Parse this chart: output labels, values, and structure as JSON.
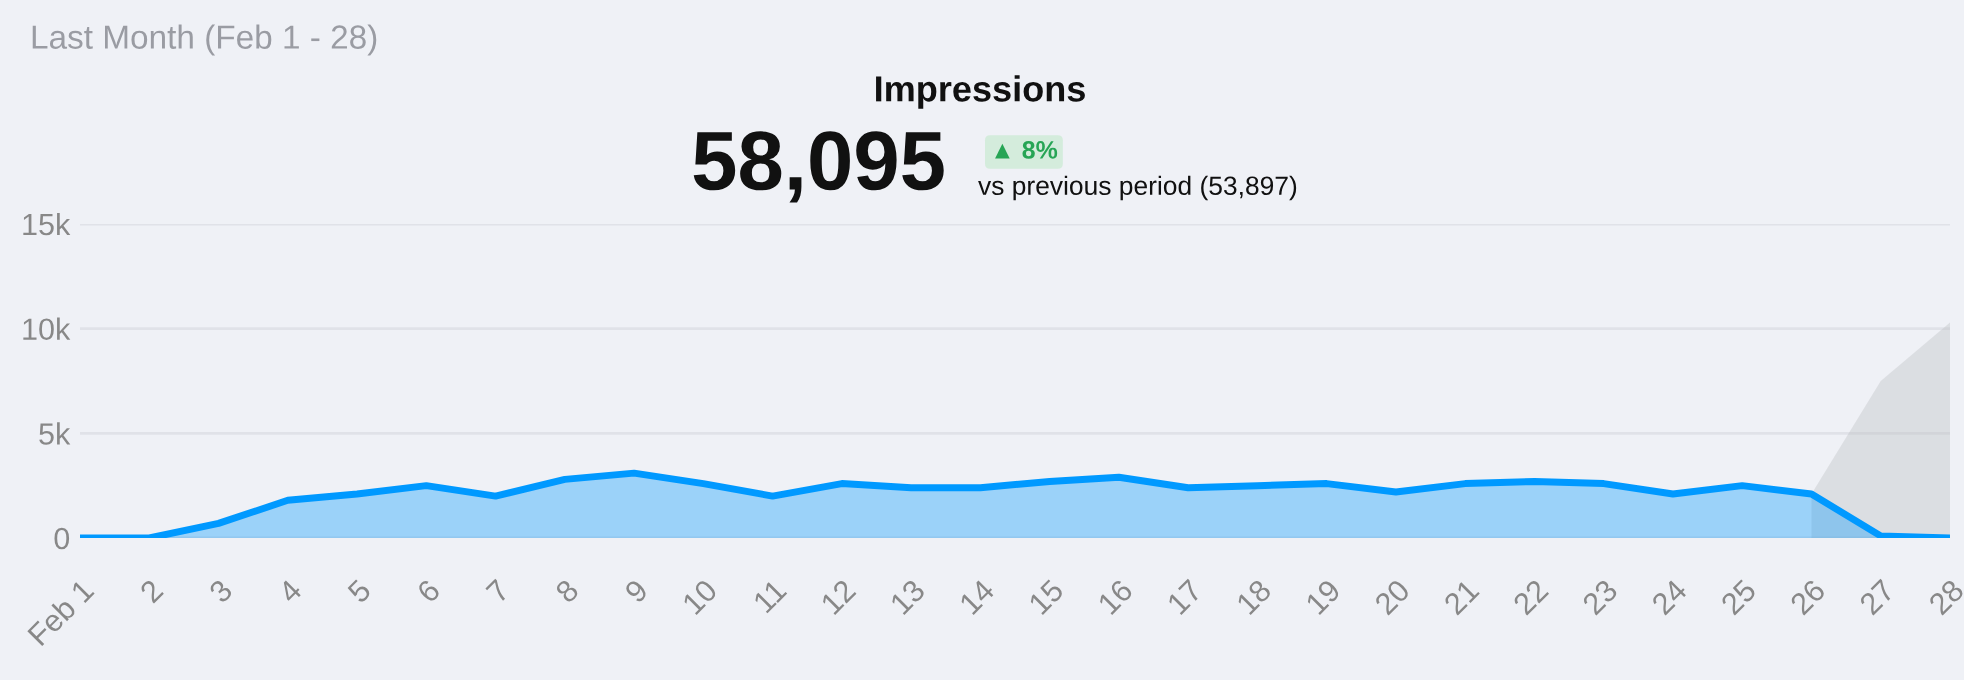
{
  "chart_data": {
    "type": "area",
    "title": "Impressions",
    "subtitle": "Last Month (Feb 1 - 28)",
    "annotations": [
      "58,095",
      "▲ 8%",
      "vs previous period (53,897)"
    ],
    "categories": [
      "Feb 1",
      "2",
      "3",
      "4",
      "5",
      "6",
      "7",
      "8",
      "9",
      "10",
      "11",
      "12",
      "13",
      "14",
      "15",
      "16",
      "17",
      "18",
      "19",
      "20",
      "21",
      "22",
      "23",
      "24",
      "25",
      "26",
      "27",
      "28"
    ],
    "series": [
      {
        "color": "#0099ff",
        "values": [
          0,
          0,
          700,
          1800,
          2100,
          2500,
          2000,
          2800,
          3100,
          2600,
          2000,
          2600,
          2400,
          2400,
          2700,
          2900,
          2400,
          2500,
          2600,
          2200,
          2600,
          2700,
          2600,
          2100,
          2500,
          2100,
          100,
          0
        ]
      },
      {
        "color": "#b8b9bd",
        "values": [
          null,
          null,
          null,
          null,
          null,
          null,
          null,
          null,
          null,
          null,
          null,
          null,
          null,
          null,
          null,
          null,
          null,
          null,
          null,
          null,
          null,
          null,
          null,
          null,
          null,
          2100,
          7500,
          10300
        ]
      }
    ],
    "ylim": [
      0,
      15000
    ],
    "yticks": [
      0,
      {
        "value": 5000,
        "label": "5k"
      },
      {
        "value": 10000,
        "label": "10k"
      },
      {
        "value": 15000,
        "label": "15k"
      }
    ],
    "grid": "y",
    "legend": false
  }
}
